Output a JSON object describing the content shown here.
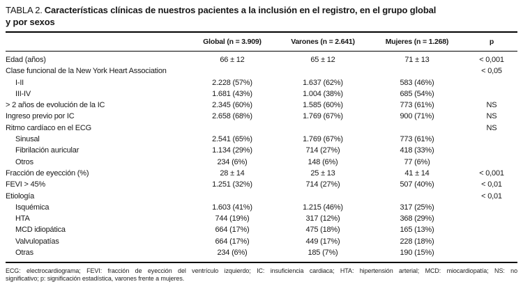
{
  "title": {
    "prefix": "TABLA 2.",
    "line1": "Características clínicas de nuestros pacientes a la inclusión en el registro, en el grupo global",
    "line2": "y por sexos"
  },
  "table": {
    "header": {
      "global": "Global (n = 3.909)",
      "varones": "Varones (n = 2.641)",
      "mujeres": "Mujeres (n = 1.268)",
      "p": "p"
    },
    "rows": [
      {
        "label": "Edad (años)",
        "indent": false,
        "global": "66 ± 12",
        "varones": "65 ± 12",
        "mujeres": "71 ± 13",
        "p": "< 0,001"
      },
      {
        "label": "Clase funcional de la New York Heart Association",
        "indent": false,
        "global": "",
        "varones": "",
        "mujeres": "",
        "p": "< 0,05"
      },
      {
        "label": "I-II",
        "indent": true,
        "global": "2.228 (57%)",
        "varones": "1.637 (62%)",
        "mujeres": "583 (46%)",
        "p": ""
      },
      {
        "label": "III-IV",
        "indent": true,
        "global": "1.681 (43%)",
        "varones": "1.004 (38%)",
        "mujeres": "685 (54%)",
        "p": ""
      },
      {
        "label": "> 2 años de evolución de la IC",
        "indent": false,
        "global": "2.345 (60%)",
        "varones": "1.585 (60%)",
        "mujeres": "773 (61%)",
        "p": "NS"
      },
      {
        "label": "Ingreso previo por IC",
        "indent": false,
        "global": "2.658 (68%)",
        "varones": "1.769 (67%)",
        "mujeres": "900 (71%)",
        "p": "NS"
      },
      {
        "label": "Ritmo cardíaco en el ECG",
        "indent": false,
        "global": "",
        "varones": "",
        "mujeres": "",
        "p": "NS"
      },
      {
        "label": "Sinusal",
        "indent": true,
        "global": "2.541 (65%)",
        "varones": "1.769 (67%)",
        "mujeres": "773 (61%)",
        "p": ""
      },
      {
        "label": "Fibrilación auricular",
        "indent": true,
        "global": "1.134 (29%)",
        "varones": "714 (27%)",
        "mujeres": "418 (33%)",
        "p": ""
      },
      {
        "label": "Otros",
        "indent": true,
        "global": "234 (6%)",
        "varones": "148 (6%)",
        "mujeres": "77 (6%)",
        "p": ""
      },
      {
        "label": "Fracción de eyección (%)",
        "indent": false,
        "global": "28 ± 14",
        "varones": "25 ± 13",
        "mujeres": "41 ± 14",
        "p": "< 0,001"
      },
      {
        "label": "FEVI > 45%",
        "indent": false,
        "global": "1.251 (32%)",
        "varones": "714 (27%)",
        "mujeres": "507 (40%)",
        "p": "< 0,01"
      },
      {
        "label": "Etiología",
        "indent": false,
        "global": "",
        "varones": "",
        "mujeres": "",
        "p": "< 0,01"
      },
      {
        "label": "Isquémica",
        "indent": true,
        "global": "1.603 (41%)",
        "varones": "1.215 (46%)",
        "mujeres": "317 (25%)",
        "p": ""
      },
      {
        "label": "HTA",
        "indent": true,
        "global": "744 (19%)",
        "varones": "317 (12%)",
        "mujeres": "368 (29%)",
        "p": ""
      },
      {
        "label": "MCD idiopática",
        "indent": true,
        "global": "664 (17%)",
        "varones": "475 (18%)",
        "mujeres": "165 (13%)",
        "p": ""
      },
      {
        "label": "Valvulopatías",
        "indent": true,
        "global": "664 (17%)",
        "varones": "449 (17%)",
        "mujeres": "228 (18%)",
        "p": ""
      },
      {
        "label": "Otras",
        "indent": true,
        "global": "234 (6%)",
        "varones": "185 (7%)",
        "mujeres": "190 (15%)",
        "p": ""
      }
    ]
  },
  "footnote": {
    "line1": "ECG: electrocardiograma; FEVI: fracción de eyección del ventrículo izquierdo; IC: insuficiencia cardiaca; HTA: hipertensión arterial; MCD: miocardiopatía; NS: no",
    "line2": "significativo; p: significación estadística, varones frente a mujeres."
  },
  "colors": {
    "background": "#ffffff",
    "text": "#171717",
    "rule": "#000000"
  }
}
